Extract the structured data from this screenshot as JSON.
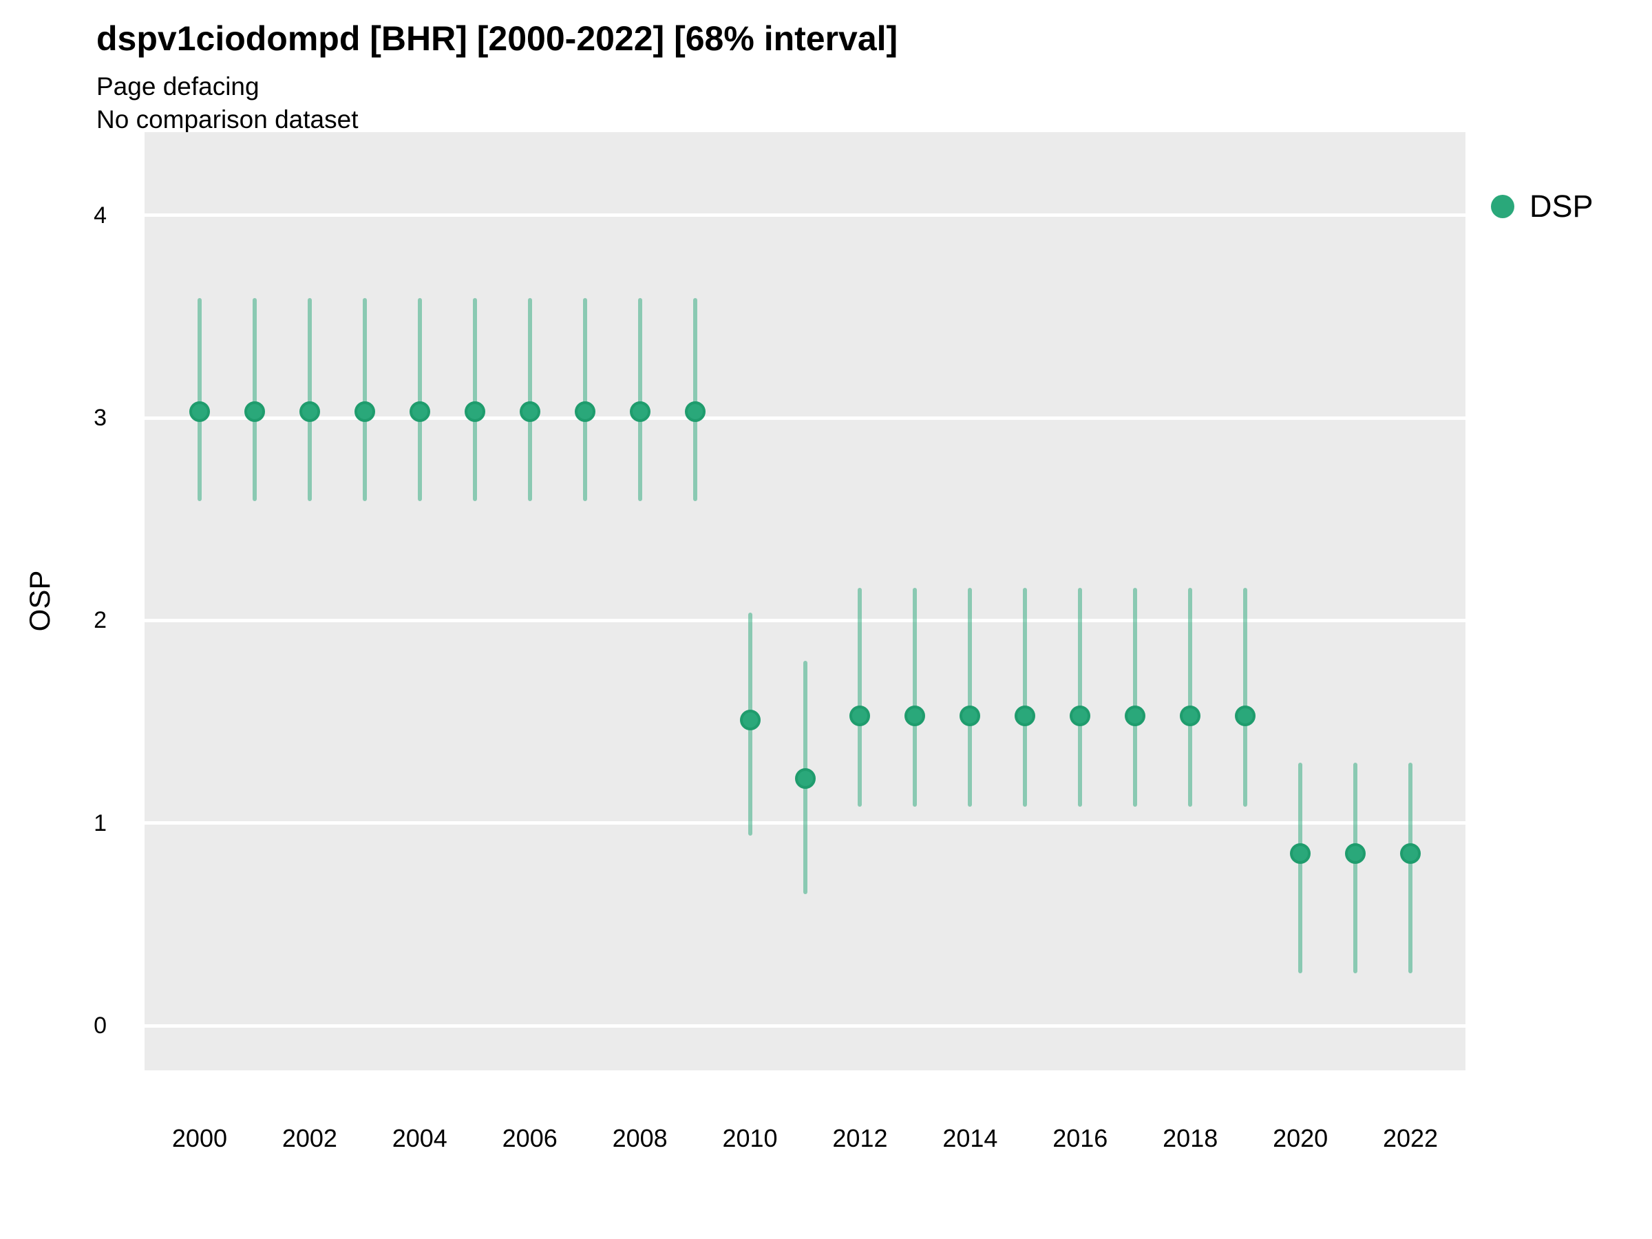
{
  "chart_data": {
    "type": "pointrange",
    "title": "dspv1ciodompd [BHR] [2000-2022] [68% interval]",
    "subtitle": "Page defacing",
    "note": "No comparison dataset",
    "xlabel": "",
    "ylabel": "OSP",
    "grid": true,
    "legend": {
      "position": "right-top",
      "entries": [
        {
          "label": "DSP",
          "color": "#2aa87a"
        }
      ]
    },
    "x_ticks": [
      2000,
      2002,
      2004,
      2006,
      2008,
      2010,
      2012,
      2014,
      2016,
      2018,
      2020,
      2022
    ],
    "y_ticks": [
      0,
      1,
      2,
      3,
      4
    ],
    "xlim": [
      1999.0,
      2023.0
    ],
    "ylim": [
      -0.22,
      4.41
    ],
    "series": [
      {
        "name": "DSP",
        "points": [
          {
            "x": 2000,
            "y": 3.03,
            "lo": 2.59,
            "hi": 3.59
          },
          {
            "x": 2001,
            "y": 3.03,
            "lo": 2.59,
            "hi": 3.59
          },
          {
            "x": 2002,
            "y": 3.03,
            "lo": 2.59,
            "hi": 3.59
          },
          {
            "x": 2003,
            "y": 3.03,
            "lo": 2.59,
            "hi": 3.59
          },
          {
            "x": 2004,
            "y": 3.03,
            "lo": 2.59,
            "hi": 3.59
          },
          {
            "x": 2005,
            "y": 3.03,
            "lo": 2.59,
            "hi": 3.59
          },
          {
            "x": 2006,
            "y": 3.03,
            "lo": 2.59,
            "hi": 3.59
          },
          {
            "x": 2007,
            "y": 3.03,
            "lo": 2.59,
            "hi": 3.59
          },
          {
            "x": 2008,
            "y": 3.03,
            "lo": 2.59,
            "hi": 3.59
          },
          {
            "x": 2009,
            "y": 3.03,
            "lo": 2.59,
            "hi": 3.59
          },
          {
            "x": 2010,
            "y": 1.51,
            "lo": 0.94,
            "hi": 2.04
          },
          {
            "x": 2011,
            "y": 1.22,
            "lo": 0.65,
            "hi": 1.8
          },
          {
            "x": 2012,
            "y": 1.53,
            "lo": 1.08,
            "hi": 2.16
          },
          {
            "x": 2013,
            "y": 1.53,
            "lo": 1.08,
            "hi": 2.16
          },
          {
            "x": 2014,
            "y": 1.53,
            "lo": 1.08,
            "hi": 2.16
          },
          {
            "x": 2015,
            "y": 1.53,
            "lo": 1.08,
            "hi": 2.16
          },
          {
            "x": 2016,
            "y": 1.53,
            "lo": 1.08,
            "hi": 2.16
          },
          {
            "x": 2017,
            "y": 1.53,
            "lo": 1.08,
            "hi": 2.16
          },
          {
            "x": 2018,
            "y": 1.53,
            "lo": 1.08,
            "hi": 2.16
          },
          {
            "x": 2019,
            "y": 1.53,
            "lo": 1.08,
            "hi": 2.16
          },
          {
            "x": 2020,
            "y": 0.85,
            "lo": 0.26,
            "hi": 1.3
          },
          {
            "x": 2021,
            "y": 0.85,
            "lo": 0.26,
            "hi": 1.3
          },
          {
            "x": 2022,
            "y": 0.85,
            "lo": 0.26,
            "hi": 1.3
          }
        ]
      }
    ],
    "colors": {
      "point_fill": "#2aa87a",
      "point_stroke": "#1f9c6d",
      "interval": "rgba(42,168,122,0.5)",
      "panel_bg": "#ebebeb",
      "gridline": "#ffffff",
      "text": "#000000",
      "background": "#ffffff"
    }
  }
}
